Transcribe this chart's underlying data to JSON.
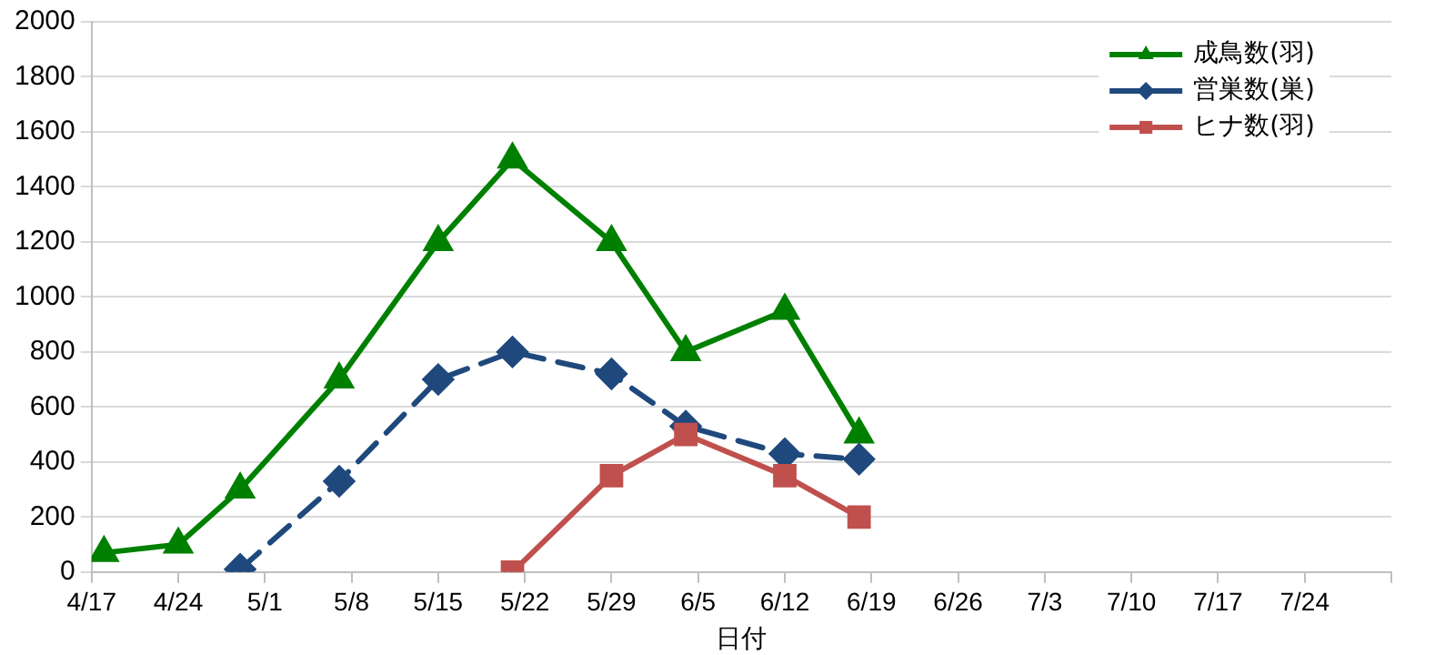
{
  "chart_data": {
    "type": "line",
    "xlabel": "日付",
    "xlim": [
      "--04-17",
      "--07-31"
    ],
    "xticks": [
      {
        "value": "--04-17",
        "label": "4/17"
      },
      {
        "value": "--04-24",
        "label": "4/24"
      },
      {
        "value": "--05-01",
        "label": "5/1"
      },
      {
        "value": "--05-08",
        "label": "5/8"
      },
      {
        "value": "--05-15",
        "label": "5/15"
      },
      {
        "value": "--05-22",
        "label": "5/22"
      },
      {
        "value": "--05-29",
        "label": "5/29"
      },
      {
        "value": "--06-05",
        "label": "6/5"
      },
      {
        "value": "--06-12",
        "label": "6/12"
      },
      {
        "value": "--06-19",
        "label": "6/19"
      },
      {
        "value": "--06-26",
        "label": "6/26"
      },
      {
        "value": "--07-03",
        "label": "7/3"
      },
      {
        "value": "--07-10",
        "label": "7/10"
      },
      {
        "value": "--07-17",
        "label": "7/17"
      },
      {
        "value": "--07-24",
        "label": "7/24"
      },
      {
        "value": "--07-31",
        "label": null
      }
    ],
    "ylim": [
      0,
      2000
    ],
    "yticks": [
      0,
      200,
      400,
      600,
      800,
      1000,
      1200,
      1400,
      1600,
      1800,
      2000
    ],
    "grid": "y",
    "legend": "top right",
    "series": [
      {
        "name": "成鳥数(羽)",
        "color": "#008000",
        "marker": "triangle",
        "line_style": "solid",
        "x": [
          "--04-18",
          "--04-24",
          "--04-29",
          "--05-07",
          "--05-15",
          "--05-21",
          "--05-29",
          "--06-04",
          "--06-12",
          "--06-18"
        ],
        "values": [
          70,
          100,
          300,
          700,
          1200,
          1500,
          1200,
          800,
          950,
          500
        ]
      },
      {
        "name": "営巣数(巣)",
        "color": "#1f497d",
        "marker": "diamond",
        "line_style": "dashed",
        "x": [
          "--04-29",
          "--05-07",
          "--05-15",
          "--05-21",
          "--05-29",
          "--06-04",
          "--06-12",
          "--06-18"
        ],
        "values": [
          10,
          330,
          700,
          800,
          720,
          530,
          430,
          410
        ]
      },
      {
        "name": "ヒナ数(羽)",
        "color": "#c0504d",
        "marker": "square",
        "line_style": "solid",
        "x": [
          "--05-21",
          "--05-29",
          "--06-04",
          "--06-12",
          "--06-18"
        ],
        "values": [
          0,
          350,
          500,
          350,
          200
        ]
      }
    ]
  }
}
